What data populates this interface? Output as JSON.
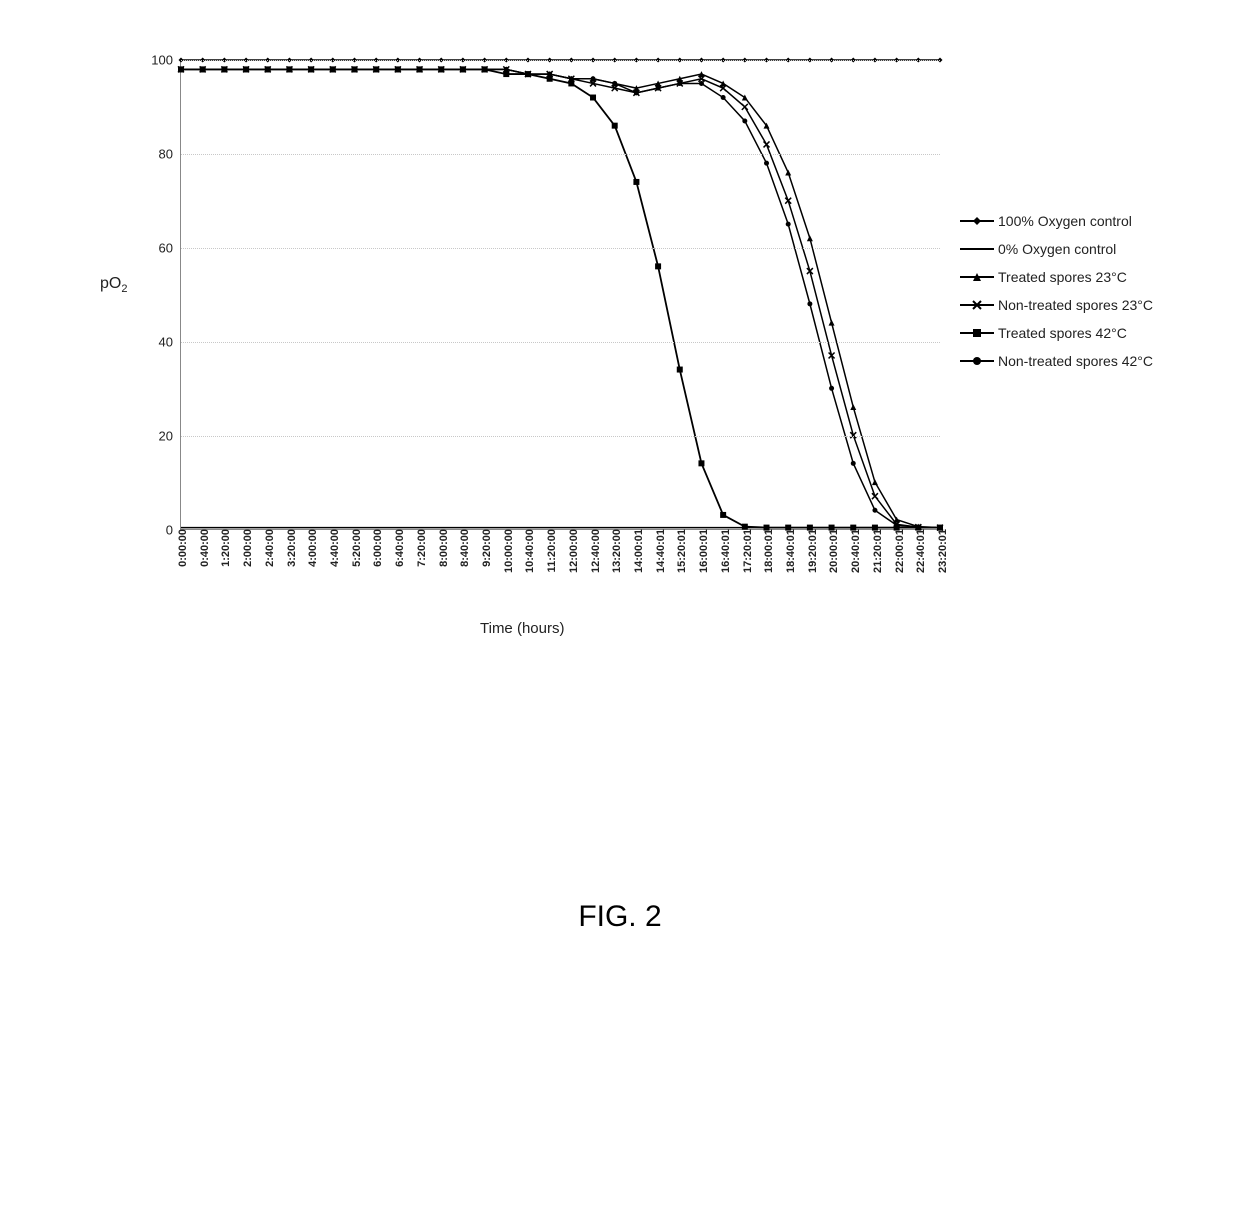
{
  "chart": {
    "type": "line",
    "ylabel_html": "pO<sub>2</sub>",
    "xlabel": "Time (hours)",
    "ylim": [
      0,
      100
    ],
    "ytick_step": 20,
    "grid_color": "#c8c8c8",
    "background_color": "#ffffff",
    "label_fontsize": 15,
    "tick_fontsize": 13,
    "xtick_fontsize": 11,
    "xtick_labels": [
      "0:00:00",
      "0:40:00",
      "1:20:00",
      "2:00:00",
      "2:40:00",
      "3:20:00",
      "4:00:00",
      "4:40:00",
      "5:20:00",
      "6:00:00",
      "6:40:00",
      "7:20:00",
      "8:00:00",
      "8:40:00",
      "9:20:00",
      "10:00:00",
      "10:40:00",
      "11:20:00",
      "12:00:00",
      "12:40:00",
      "13:20:00",
      "14:00:01",
      "14:40:01",
      "15:20:01",
      "16:00:01",
      "16:40:01",
      "17:20:01",
      "18:00:01",
      "18:40:01",
      "19:20:01",
      "20:00:01",
      "20:40:01",
      "21:20:01",
      "22:00:01",
      "22:40:01",
      "23:20:01"
    ],
    "x_count": 36,
    "legend": [
      {
        "label": "100% Oxygen control",
        "marker": "diamond",
        "color": "#000000"
      },
      {
        "label": "0% Oxygen control",
        "marker": "none",
        "color": "#000000"
      },
      {
        "label": "Treated spores 23°C",
        "marker": "triangle",
        "color": "#000000"
      },
      {
        "label": "Non-treated spores 23°C",
        "marker": "x",
        "color": "#000000"
      },
      {
        "label": "Treated spores 42°C",
        "marker": "square",
        "color": "#000000"
      },
      {
        "label": "Non-treated spores 42°C",
        "marker": "circle",
        "color": "#000000"
      }
    ],
    "series": [
      {
        "name": "100% Oxygen control",
        "marker": "diamond",
        "color": "#000000",
        "line_width": 1.5,
        "marker_size": 5,
        "y": [
          100,
          100,
          100,
          100,
          100,
          100,
          100,
          100,
          100,
          100,
          100,
          100,
          100,
          100,
          100,
          100,
          100,
          100,
          100,
          100,
          100,
          100,
          100,
          100,
          100,
          100,
          100,
          100,
          100,
          100,
          100,
          100,
          100,
          100,
          100,
          100
        ]
      },
      {
        "name": "0% Oxygen control",
        "marker": "none",
        "color": "#000000",
        "line_width": 1.5,
        "marker_size": 0,
        "y": [
          0.3,
          0.3,
          0.3,
          0.3,
          0.3,
          0.3,
          0.3,
          0.3,
          0.3,
          0.3,
          0.3,
          0.3,
          0.3,
          0.3,
          0.3,
          0.3,
          0.3,
          0.3,
          0.3,
          0.3,
          0.3,
          0.3,
          0.3,
          0.3,
          0.3,
          0.3,
          0.3,
          0.3,
          0.3,
          0.3,
          0.3,
          0.3,
          0.3,
          0.3,
          0.3,
          0.3
        ]
      },
      {
        "name": "Treated spores 23°C",
        "marker": "triangle",
        "color": "#000000",
        "line_width": 1.5,
        "marker_size": 6,
        "y": [
          98,
          98,
          98,
          98,
          98,
          98,
          98,
          98,
          98,
          98,
          98,
          98,
          98,
          98,
          98,
          98,
          97,
          97,
          96,
          96,
          95,
          94,
          95,
          96,
          97,
          95,
          92,
          86,
          76,
          62,
          44,
          26,
          10,
          2,
          0.5,
          0.3
        ]
      },
      {
        "name": "Non-treated spores 23°C",
        "marker": "x",
        "color": "#000000",
        "line_width": 1.5,
        "marker_size": 6,
        "y": [
          98,
          98,
          98,
          98,
          98,
          98,
          98,
          98,
          98,
          98,
          98,
          98,
          98,
          98,
          98,
          98,
          97,
          97,
          96,
          95,
          94,
          93,
          94,
          95,
          96,
          94,
          90,
          82,
          70,
          55,
          37,
          20,
          7,
          1,
          0.4,
          0.3
        ]
      },
      {
        "name": "Treated spores 42°C",
        "marker": "square",
        "color": "#000000",
        "line_width": 1.8,
        "marker_size": 6,
        "y": [
          98,
          98,
          98,
          98,
          98,
          98,
          98,
          98,
          98,
          98,
          98,
          98,
          98,
          98,
          98,
          97,
          97,
          96,
          95,
          92,
          86,
          74,
          56,
          34,
          14,
          3,
          0.5,
          0.3,
          0.3,
          0.3,
          0.3,
          0.3,
          0.3,
          0.3,
          0.3,
          0.3
        ]
      },
      {
        "name": "Non-treated spores 42°C",
        "marker": "circle",
        "color": "#000000",
        "line_width": 1.5,
        "marker_size": 5,
        "y": [
          98,
          98,
          98,
          98,
          98,
          98,
          98,
          98,
          98,
          98,
          98,
          98,
          98,
          98,
          98,
          98,
          97,
          97,
          96,
          96,
          95,
          93,
          94,
          95,
          95,
          92,
          87,
          78,
          65,
          48,
          30,
          14,
          4,
          0.8,
          0.4,
          0.3
        ]
      }
    ]
  },
  "caption": "FIG. 2"
}
